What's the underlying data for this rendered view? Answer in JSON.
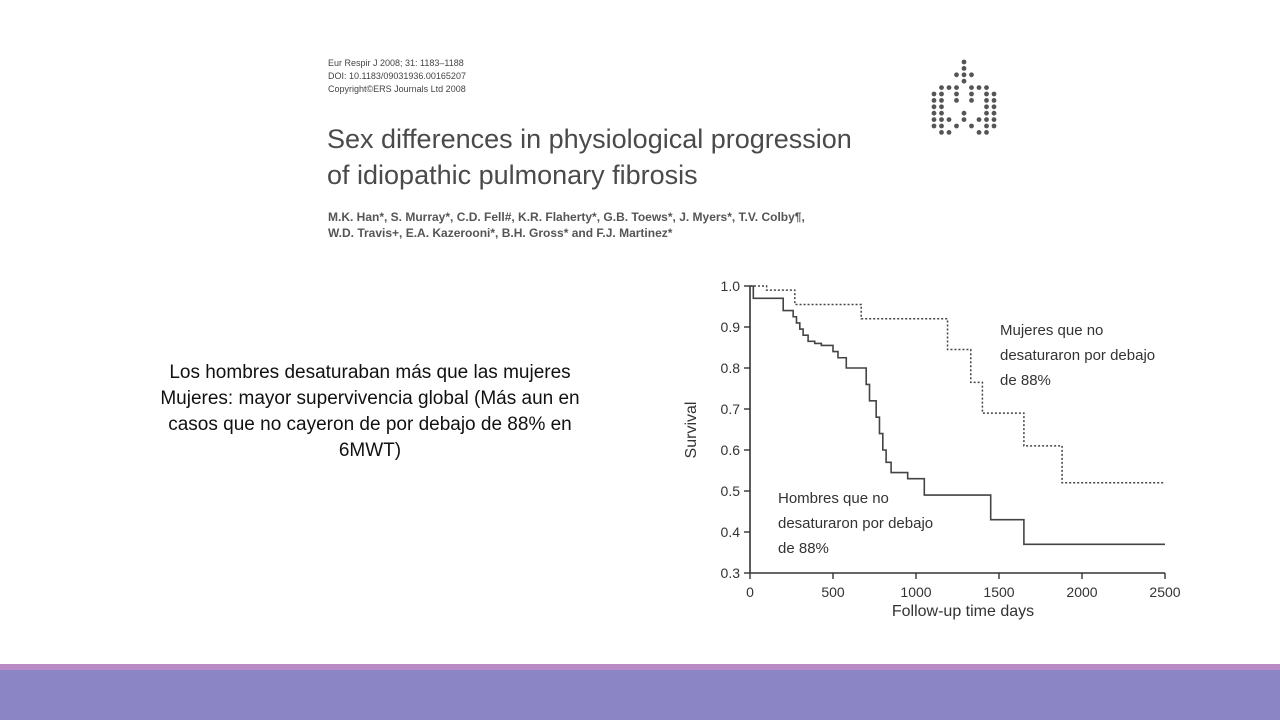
{
  "paper": {
    "meta_lines": [
      "Eur Respir J 2008; 31: 1183–1188",
      "DOI: 10.1183/09031936.00165207",
      "Copyright©ERS Journals Ltd 2008"
    ],
    "title_lines": [
      "Sex differences in physiological progression",
      "of idiopathic pulmonary fibrosis"
    ],
    "author_lines": [
      "M.K. Han*, S. Murray*, C.D. Fell#, K.R. Flaherty*, G.B. Toews*, J. Myers*, T.V. Colby¶,",
      "W.D. Travis+, E.A. Kazerooni*, B.H. Gross* and F.J. Martinez*"
    ]
  },
  "summary": {
    "lines": [
      "Los hombres desaturaban más que las mujeres",
      "Mujeres: mayor supervivencia global (Más aun en",
      "casos que no cayeron de por debajo de 88% en",
      "6MWT)"
    ]
  },
  "colors": {
    "band_line": "#b88ac6",
    "band_main": "#8b85c5",
    "axis": "#333333",
    "series": "#444444"
  },
  "chart_data": {
    "type": "line",
    "xlabel": "Follow-up time days",
    "ylabel": "Survival",
    "xlim": [
      0,
      2500
    ],
    "ylim": [
      0.3,
      1.0
    ],
    "xticks": [
      0,
      500,
      1000,
      1500,
      2000,
      2500
    ],
    "yticks": [
      0.3,
      0.4,
      0.5,
      0.6,
      0.7,
      0.8,
      0.9,
      1.0
    ],
    "xtick_labels": [
      "0",
      "500",
      "1000",
      "1500",
      "2000",
      "2500"
    ],
    "ytick_labels": [
      "0.3",
      "0.4",
      "0.5",
      "0.6",
      "0.7",
      "0.8",
      "0.9",
      "1.0"
    ],
    "step": true,
    "grid": false,
    "series": [
      {
        "style": "dotted",
        "x": [
          0,
          70,
          100,
          250,
          270,
          650,
          670,
          1170,
          1190,
          1300,
          1330,
          1380,
          1400,
          1630,
          1650,
          1860,
          1880,
          2500
        ],
        "y": [
          1.0,
          1.0,
          0.99,
          0.99,
          0.955,
          0.955,
          0.92,
          0.92,
          0.845,
          0.845,
          0.765,
          0.765,
          0.69,
          0.69,
          0.61,
          0.61,
          0.52,
          0.52
        ]
      },
      {
        "style": "solid",
        "x": [
          0,
          20,
          100,
          200,
          260,
          280,
          300,
          320,
          350,
          390,
          430,
          500,
          530,
          580,
          650,
          700,
          720,
          760,
          780,
          800,
          820,
          850,
          950,
          1050,
          1450,
          1650,
          2500
        ],
        "y": [
          1.0,
          0.97,
          0.97,
          0.94,
          0.925,
          0.91,
          0.895,
          0.88,
          0.865,
          0.86,
          0.855,
          0.84,
          0.825,
          0.8,
          0.8,
          0.76,
          0.72,
          0.68,
          0.64,
          0.6,
          0.57,
          0.545,
          0.53,
          0.49,
          0.43,
          0.37,
          0.37
        ]
      }
    ],
    "annotations": [
      {
        "lines": [
          "Mujeres que no",
          "desaturaron por debajo",
          "de 88%"
        ]
      },
      {
        "lines": [
          "Hombres que no",
          "desaturaron por debajo",
          "de 88%"
        ]
      }
    ]
  }
}
